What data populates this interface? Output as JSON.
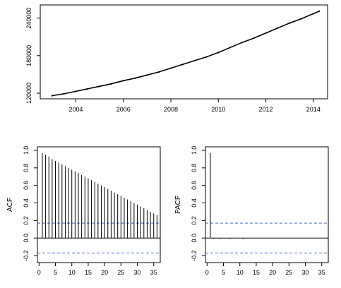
{
  "chart_data": [
    {
      "panel": "top",
      "type": "line",
      "x_ticks": [
        "2004",
        "2006",
        "2008",
        "2010",
        "2012",
        "2014"
      ],
      "x_tick_values": [
        2004,
        2006,
        2008,
        2010,
        2012,
        2014
      ],
      "y_ticks": [
        "120000",
        "180000",
        "240000"
      ],
      "y_tick_values": [
        120000,
        180000,
        240000
      ],
      "xlim": [
        2002.5,
        2014.6
      ],
      "ylim": [
        111000,
        261000
      ],
      "series": [
        {
          "x": [
            2003.0,
            2003.5,
            2004.0,
            2004.5,
            2005.0,
            2005.5,
            2006.0,
            2006.5,
            2007.0,
            2007.5,
            2008.0,
            2008.5,
            2009.0,
            2009.5,
            2010.0,
            2010.5,
            2011.0,
            2011.5,
            2012.0,
            2012.5,
            2013.0,
            2013.5,
            2014.0,
            2014.25
          ],
          "y": [
            116000,
            119000,
            123000,
            127000,
            131000,
            135000,
            140000,
            144000,
            149000,
            154000,
            160000,
            166000,
            172000,
            178000,
            185000,
            193000,
            201000,
            208000,
            216000,
            224000,
            232000,
            239000,
            247000,
            251000
          ]
        }
      ]
    },
    {
      "panel": "acf",
      "type": "bar",
      "ylabel": "ACF",
      "x_ticks": [
        "0",
        "5",
        "10",
        "15",
        "20",
        "25",
        "30",
        "35"
      ],
      "x_tick_values": [
        0,
        5,
        10,
        15,
        20,
        25,
        30,
        35
      ],
      "y_ticks": [
        "-0.2",
        "0.0",
        "0.2",
        "0.4",
        "0.6",
        "0.8",
        "1.0"
      ],
      "y_tick_values": [
        -0.2,
        0.0,
        0.2,
        0.4,
        0.6,
        0.8,
        1.0
      ],
      "xlim": [
        -0.5,
        37
      ],
      "ylim": [
        -0.28,
        1.04
      ],
      "conf_band": 0.17,
      "lags": [
        1,
        2,
        3,
        4,
        5,
        6,
        7,
        8,
        9,
        10,
        11,
        12,
        13,
        14,
        15,
        16,
        17,
        18,
        19,
        20,
        21,
        22,
        23,
        24,
        25,
        26,
        27,
        28,
        29,
        30,
        31,
        32,
        33,
        34,
        35,
        36
      ],
      "values": [
        0.97,
        0.95,
        0.93,
        0.9,
        0.88,
        0.86,
        0.84,
        0.82,
        0.8,
        0.78,
        0.76,
        0.74,
        0.72,
        0.7,
        0.68,
        0.66,
        0.64,
        0.62,
        0.6,
        0.58,
        0.56,
        0.54,
        0.52,
        0.5,
        0.48,
        0.46,
        0.44,
        0.42,
        0.4,
        0.38,
        0.36,
        0.34,
        0.32,
        0.3,
        0.28,
        0.26
      ]
    },
    {
      "panel": "pacf",
      "type": "bar",
      "ylabel": "PACF",
      "x_ticks": [
        "0",
        "5",
        "10",
        "15",
        "20",
        "25",
        "30",
        "35"
      ],
      "x_tick_values": [
        0,
        5,
        10,
        15,
        20,
        25,
        30,
        35
      ],
      "y_ticks": [
        "-0.2",
        "0.0",
        "0.2",
        "0.4",
        "0.6",
        "0.8",
        "1.0"
      ],
      "y_tick_values": [
        -0.2,
        0.0,
        0.2,
        0.4,
        0.6,
        0.8,
        1.0
      ],
      "xlim": [
        -0.5,
        37
      ],
      "ylim": [
        -0.28,
        1.04
      ],
      "conf_band": 0.17,
      "lags": [
        1,
        2,
        3,
        4,
        5,
        6,
        7,
        8,
        9,
        10,
        11,
        12,
        13,
        14,
        15,
        16,
        17,
        18,
        19,
        20,
        21,
        22,
        23,
        24,
        25,
        26,
        27,
        28,
        29,
        30,
        31,
        32,
        33,
        34,
        35,
        36
      ],
      "values": [
        0.97,
        -0.01,
        0.0,
        -0.01,
        0.0,
        0.0,
        -0.01,
        0.0,
        0.0,
        0.0,
        -0.01,
        0.0,
        0.0,
        0.0,
        0.0,
        0.0,
        0.0,
        0.0,
        0.0,
        0.0,
        0.0,
        0.0,
        0.0,
        0.0,
        0.0,
        0.0,
        0.0,
        0.0,
        0.0,
        0.0,
        0.0,
        0.0,
        0.0,
        0.0,
        0.0,
        0.0
      ]
    }
  ]
}
